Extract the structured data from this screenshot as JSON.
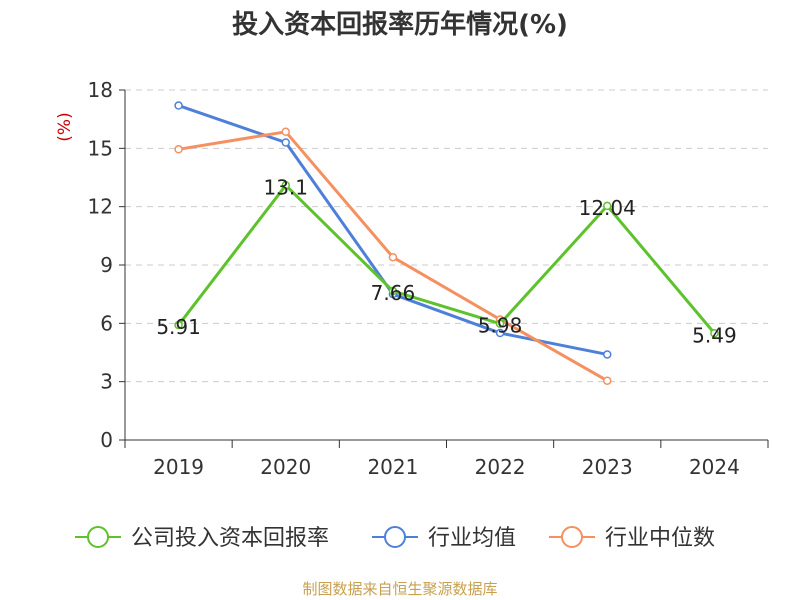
{
  "chart_data": {
    "type": "line",
    "title": "投入资本回报率历年情况(%)",
    "ylabel": "(%)",
    "xlabel": "",
    "ylim": [
      0,
      18
    ],
    "yticks": [
      0,
      3,
      6,
      9,
      12,
      15,
      18
    ],
    "categories": [
      "2019",
      "2020",
      "2021",
      "2022",
      "2023",
      "2024"
    ],
    "grid": true,
    "legend_position": "bottom",
    "series": [
      {
        "name": "公司投入资本回报率",
        "color": "#5dc22b",
        "values": [
          5.91,
          13.1,
          7.66,
          5.98,
          12.04,
          5.49
        ],
        "labels": [
          "5.91",
          "13.1",
          "7.66",
          "5.98",
          "12.04",
          "5.49"
        ]
      },
      {
        "name": "行业均值",
        "color": "#4f80d9",
        "values": [
          17.2,
          15.3,
          7.5,
          5.5,
          4.4,
          null
        ]
      },
      {
        "name": "行业中位数",
        "color": "#f59060",
        "values": [
          14.95,
          15.85,
          9.4,
          6.2,
          3.05,
          null
        ]
      }
    ]
  },
  "source": "制图数据来自恒生聚源数据库"
}
